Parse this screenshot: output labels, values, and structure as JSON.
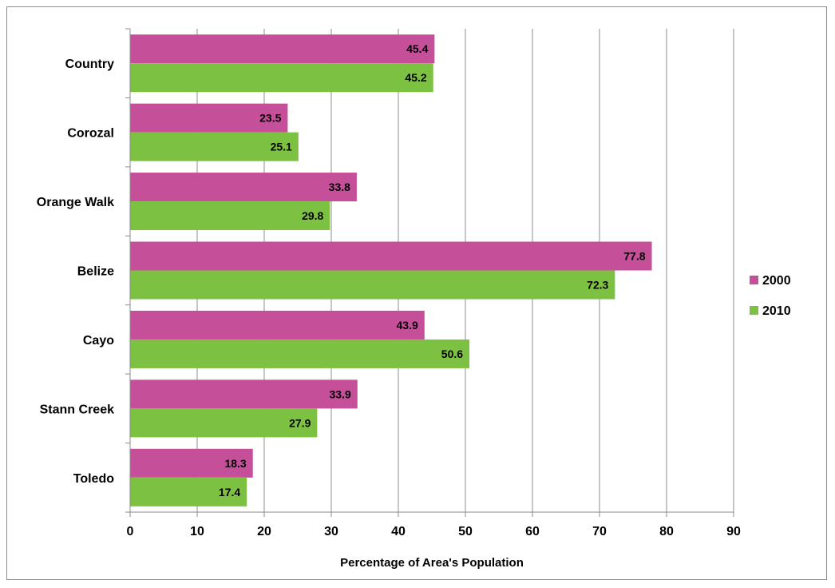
{
  "chart_data": {
    "type": "bar",
    "orientation": "horizontal",
    "categories": [
      "Country",
      "Corozal",
      "Orange Walk",
      "Belize",
      "Cayo",
      "Stann Creek",
      "Toledo"
    ],
    "series": [
      {
        "name": "2000",
        "color": "#C64F9A",
        "values": [
          45.4,
          23.5,
          33.8,
          77.8,
          43.9,
          33.9,
          18.3
        ]
      },
      {
        "name": "2010",
        "color": "#7DC142",
        "values": [
          45.2,
          25.1,
          29.8,
          72.3,
          50.6,
          27.9,
          17.4
        ]
      }
    ],
    "title": "",
    "xlabel": "Percentage of Area's Population",
    "ylabel": "",
    "xlim": [
      0,
      90
    ],
    "xticks": [
      "0",
      "10",
      "20",
      "30",
      "40",
      "50",
      "60",
      "70",
      "80",
      "90"
    ],
    "grid": "vertical major gridlines",
    "legend": "right",
    "data_labels": true
  }
}
